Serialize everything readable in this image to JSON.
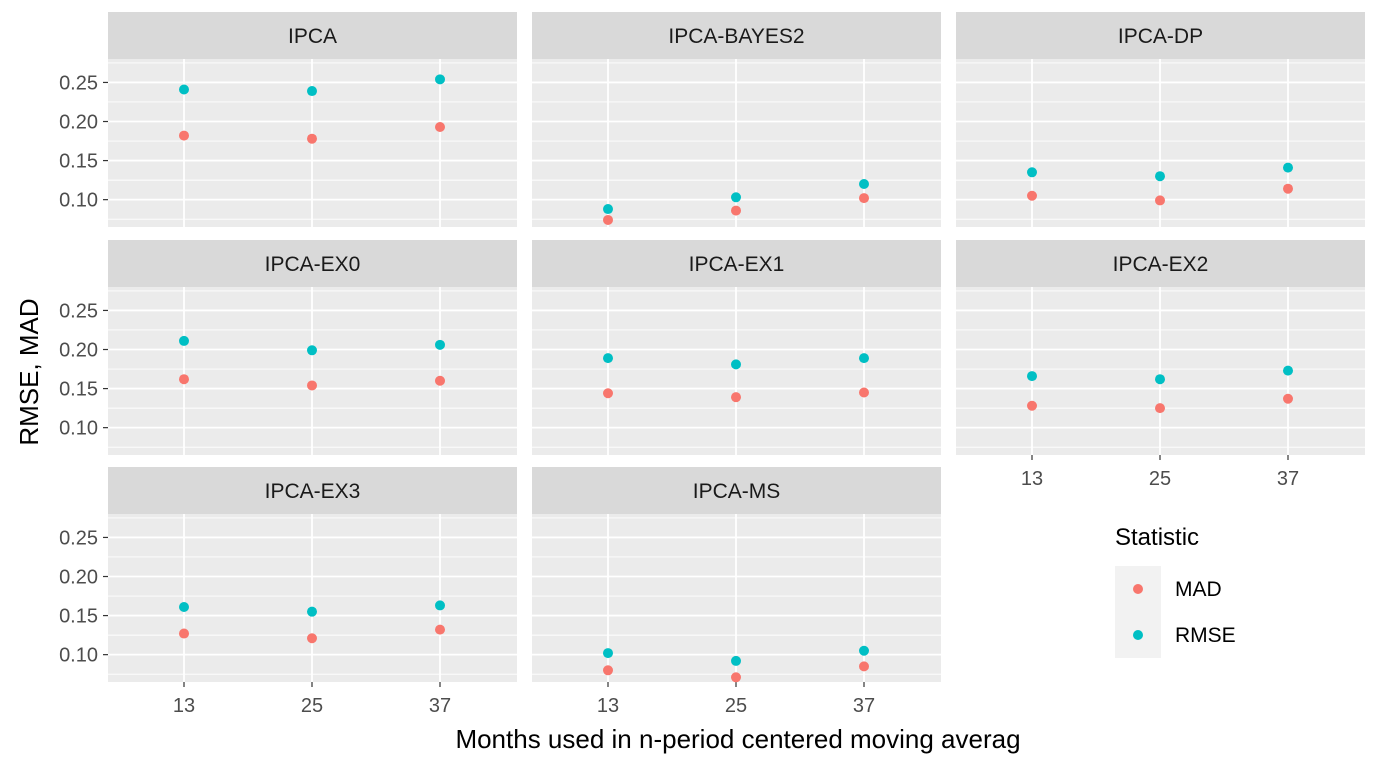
{
  "chart_data": {
    "type": "scatter",
    "xlabel": "Months used in n-period centered moving averag",
    "ylabel": "RMSE, MAD",
    "x_categories": [
      "13",
      "25",
      "37"
    ],
    "y_ticks": [
      "0.10",
      "0.15",
      "0.20",
      "0.25"
    ],
    "y_tick_values": [
      0.1,
      0.15,
      0.2,
      0.25
    ],
    "ylim": [
      0.065,
      0.28
    ],
    "grid": true,
    "legend": {
      "title": "Statistic",
      "position": "bottom-right",
      "entries": [
        {
          "name": "MAD",
          "color": "#F8766D"
        },
        {
          "name": "RMSE",
          "color": "#00BFC4"
        }
      ]
    },
    "panels": [
      {
        "title": "IPCA",
        "series": [
          {
            "name": "MAD",
            "values": [
              0.182,
              0.178,
              0.193
            ]
          },
          {
            "name": "RMSE",
            "values": [
              0.241,
              0.239,
              0.254
            ]
          }
        ]
      },
      {
        "title": "IPCA-BAYES2",
        "series": [
          {
            "name": "MAD",
            "values": [
              0.074,
              0.086,
              0.102
            ]
          },
          {
            "name": "RMSE",
            "values": [
              0.088,
              0.103,
              0.12
            ]
          }
        ]
      },
      {
        "title": "IPCA-DP",
        "series": [
          {
            "name": "MAD",
            "values": [
              0.105,
              0.099,
              0.114
            ]
          },
          {
            "name": "RMSE",
            "values": [
              0.135,
              0.13,
              0.141
            ]
          }
        ]
      },
      {
        "title": "IPCA-EX0",
        "series": [
          {
            "name": "MAD",
            "values": [
              0.162,
              0.154,
              0.16
            ]
          },
          {
            "name": "RMSE",
            "values": [
              0.211,
              0.199,
              0.206
            ]
          }
        ]
      },
      {
        "title": "IPCA-EX1",
        "series": [
          {
            "name": "MAD",
            "values": [
              0.144,
              0.139,
              0.145
            ]
          },
          {
            "name": "RMSE",
            "values": [
              0.189,
              0.181,
              0.189
            ]
          }
        ]
      },
      {
        "title": "IPCA-EX2",
        "series": [
          {
            "name": "MAD",
            "values": [
              0.128,
              0.125,
              0.137
            ]
          },
          {
            "name": "RMSE",
            "values": [
              0.166,
              0.162,
              0.173
            ]
          }
        ]
      },
      {
        "title": "IPCA-EX3",
        "series": [
          {
            "name": "MAD",
            "values": [
              0.127,
              0.121,
              0.132
            ]
          },
          {
            "name": "RMSE",
            "values": [
              0.161,
              0.155,
              0.163
            ]
          }
        ]
      },
      {
        "title": "IPCA-MS",
        "series": [
          {
            "name": "MAD",
            "values": [
              0.08,
              0.071,
              0.085
            ]
          },
          {
            "name": "RMSE",
            "values": [
              0.102,
              0.092,
              0.105
            ]
          }
        ]
      }
    ]
  }
}
